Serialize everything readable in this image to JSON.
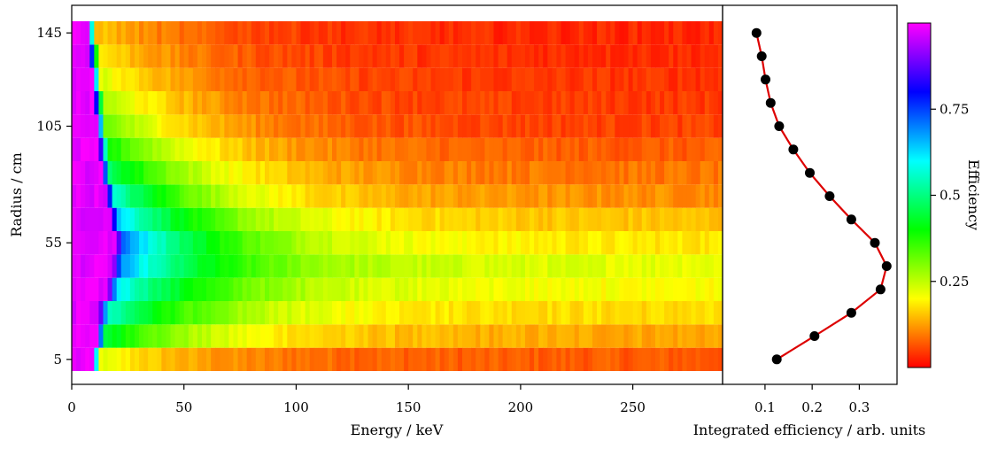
{
  "chart_data": [
    {
      "type": "heatmap",
      "xlabel": "Energy / keV",
      "ylabel": "Radius / cm",
      "xlim": [
        0,
        290
      ],
      "ylim": [
        0,
        150
      ],
      "x_ticks": [
        0,
        50,
        100,
        150,
        200,
        250
      ],
      "y_ticks": [
        5,
        55,
        105,
        145
      ],
      "rows": [
        {
          "radius": 5,
          "peak": 0.22,
          "edge_energy": 12,
          "tail": 0.07
        },
        {
          "radius": 15,
          "peak": 0.45,
          "edge_energy": 14,
          "tail": 0.13
        },
        {
          "radius": 25,
          "peak": 0.56,
          "edge_energy": 15,
          "tail": 0.17
        },
        {
          "radius": 35,
          "peak": 0.62,
          "edge_energy": 19,
          "tail": 0.2
        },
        {
          "radius": 45,
          "peak": 0.68,
          "edge_energy": 21,
          "tail": 0.22
        },
        {
          "radius": 55,
          "peak": 0.72,
          "edge_energy": 22,
          "tail": 0.18
        },
        {
          "radius": 65,
          "peak": 0.64,
          "edge_energy": 20,
          "tail": 0.15
        },
        {
          "radius": 75,
          "peak": 0.56,
          "edge_energy": 18,
          "tail": 0.11
        },
        {
          "radius": 85,
          "peak": 0.48,
          "edge_energy": 16,
          "tail": 0.09
        },
        {
          "radius": 95,
          "peak": 0.4,
          "edge_energy": 15,
          "tail": 0.07
        },
        {
          "radius": 105,
          "peak": 0.32,
          "edge_energy": 14,
          "tail": 0.05
        },
        {
          "radius": 115,
          "peak": 0.27,
          "edge_energy": 13,
          "tail": 0.045
        },
        {
          "radius": 125,
          "peak": 0.23,
          "edge_energy": 12,
          "tail": 0.04
        },
        {
          "radius": 135,
          "peak": 0.19,
          "edge_energy": 11,
          "tail": 0.035
        },
        {
          "radius": 145,
          "peak": 0.16,
          "edge_energy": 10,
          "tail": 0.03
        }
      ]
    },
    {
      "type": "line",
      "xlabel": "Integrated efficiency / arb. units",
      "x_ticks": [
        0.1,
        0.2,
        0.3
      ],
      "x_tick_labels": [
        "0.1",
        "0.2",
        "0.3"
      ],
      "xlim": [
        0.01,
        0.38
      ],
      "ylim": [
        0,
        150
      ],
      "line_color": "#dd0000",
      "marker_color": "#000000",
      "points": [
        {
          "radius": 5,
          "value": 0.125
        },
        {
          "radius": 15,
          "value": 0.205
        },
        {
          "radius": 25,
          "value": 0.283
        },
        {
          "radius": 35,
          "value": 0.345
        },
        {
          "radius": 45,
          "value": 0.358
        },
        {
          "radius": 55,
          "value": 0.333
        },
        {
          "radius": 65,
          "value": 0.283
        },
        {
          "radius": 75,
          "value": 0.237
        },
        {
          "radius": 85,
          "value": 0.195
        },
        {
          "radius": 95,
          "value": 0.16
        },
        {
          "radius": 105,
          "value": 0.13
        },
        {
          "radius": 115,
          "value": 0.112
        },
        {
          "radius": 125,
          "value": 0.101
        },
        {
          "radius": 135,
          "value": 0.093
        },
        {
          "radius": 145,
          "value": 0.082
        }
      ]
    }
  ],
  "colorbar": {
    "label": "Efficiency",
    "range": [
      0,
      1
    ],
    "ticks": [
      0.25,
      0.5,
      0.75
    ],
    "tick_labels": [
      "0.25",
      "0.5",
      "0.75"
    ],
    "colormap": "gist_rainbow_r"
  }
}
